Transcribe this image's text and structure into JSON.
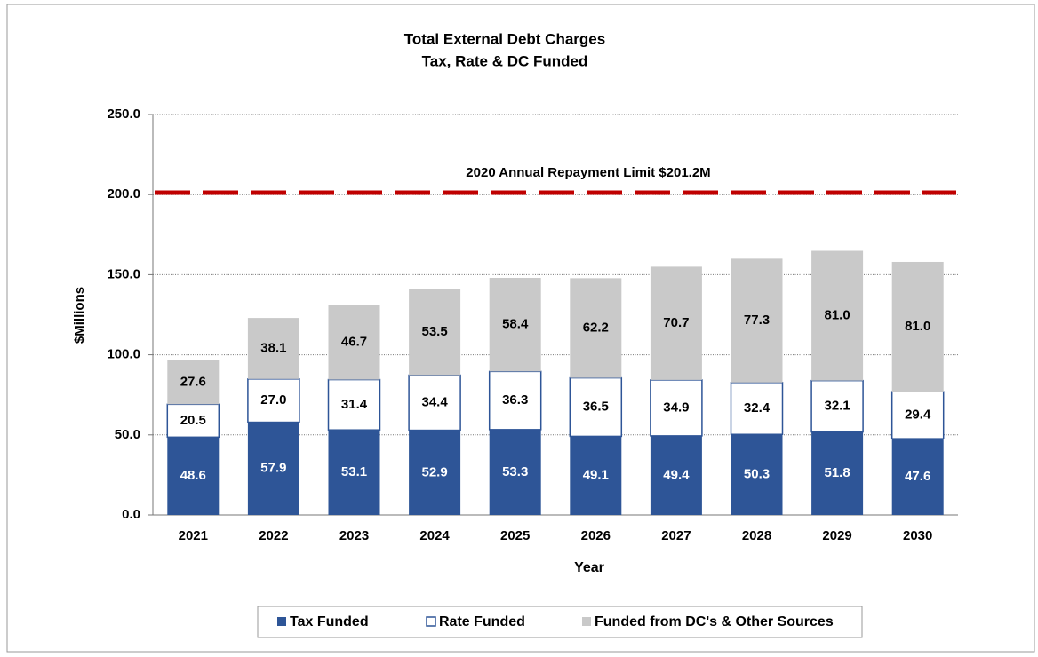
{
  "chart_data": {
    "type": "stacked_bar",
    "title": "Total External Debt Charges",
    "subtitle": "Tax, Rate & DC Funded",
    "y_label": "$Millions",
    "x_label": "Year",
    "categories": [
      "2021",
      "2022",
      "2023",
      "2024",
      "2025",
      "2026",
      "2027",
      "2028",
      "2029",
      "2030"
    ],
    "series": [
      {
        "name": "Tax Funded",
        "color": "#2e5597",
        "values": [
          48.6,
          57.9,
          53.1,
          52.9,
          53.3,
          49.1,
          49.4,
          50.3,
          51.8,
          47.6
        ],
        "value_labels": [
          "48.6",
          "57.9",
          "53.1",
          "52.9",
          "53.3",
          "49.1",
          "49.4",
          "50.3",
          "51.8",
          "47.6"
        ]
      },
      {
        "name": "Rate Funded",
        "color": "#ffffff",
        "values": [
          20.5,
          27.0,
          31.4,
          34.4,
          36.3,
          36.5,
          34.9,
          32.4,
          32.1,
          29.4
        ],
        "value_labels": [
          "20.5",
          "27.0",
          "31.4",
          "34.4",
          "36.3",
          "36.5",
          "34.9",
          "32.4",
          "32.1",
          "29.4"
        ]
      },
      {
        "name": "Funded from DC's & Other Sources",
        "color": "#c9c9c9",
        "values": [
          27.6,
          38.1,
          46.7,
          53.5,
          58.4,
          62.2,
          70.7,
          77.3,
          81.0,
          81.0
        ],
        "value_labels": [
          "27.6",
          "38.1",
          "46.7",
          "53.5",
          "58.4",
          "62.2",
          "70.7",
          "77.3",
          "81.0",
          "81.0"
        ]
      }
    ],
    "reference_line": {
      "value": 201.2,
      "label": "2020 Annual Repayment Limit $201.2M",
      "color": "#c00000"
    },
    "ylim": [
      0,
      250
    ],
    "yticks": [
      {
        "value": 0,
        "label": "0.0"
      },
      {
        "value": 50,
        "label": "50.0"
      },
      {
        "value": 100,
        "label": "100.0"
      },
      {
        "value": 150,
        "label": "150.0"
      },
      {
        "value": 200,
        "label": "200.0"
      },
      {
        "value": 250,
        "label": "250.0"
      }
    ],
    "grid": true,
    "legend": "bottom"
  }
}
